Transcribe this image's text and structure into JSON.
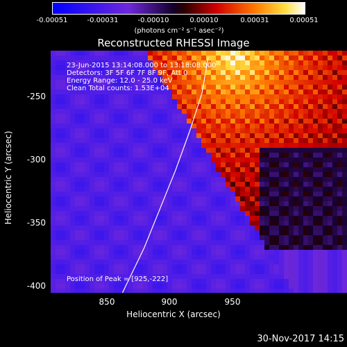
{
  "colorbar": {
    "ticks": [
      "-0.00051",
      "-0.00031",
      "-0.00010",
      "0.00010",
      "0.00031",
      "0.00051"
    ],
    "units": "(photons cm⁻² s⁻¹ asec⁻²)"
  },
  "annotations": {
    "time": "23-Jun-2015 13:14:08.000 to 13:18:08.000",
    "detectors": "Detectors: 3F 5F 6F 7F 8F 9F, Att 0",
    "energy": "Energy Range: 12.0 - 25.0 keV",
    "clean": "Clean    Total counts: 1.53E+04",
    "peak": "Position of Peak = [925,-222]"
  },
  "footer": {
    "date": "30-Nov-2017 14:15"
  },
  "chart_data": {
    "type": "heatmap",
    "title": "Reconstructed RHESSI Image",
    "xlabel": "Heliocentric X (arcsec)",
    "ylabel": "Heliocentric Y (arcsec)",
    "xlim": [
      807,
      997
    ],
    "ylim": [
      -405,
      -217
    ],
    "xticks": [
      850,
      900,
      950
    ],
    "yticks": [
      -250,
      -300,
      -350,
      -400
    ],
    "colorbar_range": [
      -0.00051,
      0.00051
    ],
    "peak": [
      925,
      -222
    ],
    "limb_arc": [
      [
        908,
        -222
      ],
      [
        904,
        -250
      ],
      [
        896,
        -280
      ],
      [
        887,
        -310
      ],
      [
        877,
        -340
      ],
      [
        867,
        -370
      ],
      [
        853,
        -405
      ]
    ]
  }
}
